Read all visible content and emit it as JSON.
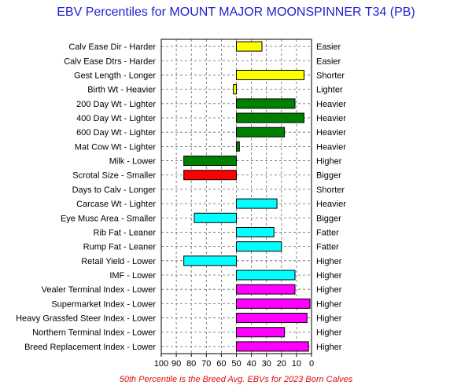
{
  "chart_data": {
    "type": "bar",
    "orientation": "horizontal",
    "title": "EBV Percentiles for MOUNT MAJOR MOONSPINNER T34 (PB)",
    "footnote": "50th Percentile is the Breed Avg. EBVs for 2023 Born Calves",
    "xlim": [
      100,
      0
    ],
    "x_reversed": true,
    "baseline": 50,
    "xticks": [
      100,
      90,
      80,
      70,
      60,
      50,
      40,
      30,
      20,
      10,
      0
    ],
    "grid": true,
    "traits": [
      {
        "left": "Calv Ease Dir - Harder",
        "right": "Easier",
        "value": 33,
        "color": "#ffff00"
      },
      {
        "left": "Calv Ease Dtrs - Harder",
        "right": "Easier",
        "value": null,
        "color": "#ffff00"
      },
      {
        "left": "Gest Length - Longer",
        "right": "Shorter",
        "value": 5,
        "color": "#ffff00"
      },
      {
        "left": "Birth Wt - Heavier",
        "right": "Lighter",
        "value": 52,
        "color": "#ffff00"
      },
      {
        "left": "200 Day Wt - Lighter",
        "right": "Heavier",
        "value": 11,
        "color": "#008000"
      },
      {
        "left": "400 Day Wt - Lighter",
        "right": "Heavier",
        "value": 5,
        "color": "#008000"
      },
      {
        "left": "600 Day Wt - Lighter",
        "right": "Heavier",
        "value": 18,
        "color": "#008000"
      },
      {
        "left": "Mat Cow Wt - Lighter",
        "right": "Heavier",
        "value": 48,
        "color": "#008000"
      },
      {
        "left": "Milk - Lower",
        "right": "Higher",
        "value": 85,
        "color": "#008000"
      },
      {
        "left": "Scrotal Size - Smaller",
        "right": "Bigger",
        "value": 85,
        "color": "#ff0000"
      },
      {
        "left": "Days to Calv - Longer",
        "right": "Shorter",
        "value": null,
        "color": "#ff0000"
      },
      {
        "left": "Carcase Wt - Lighter",
        "right": "Heavier",
        "value": 23,
        "color": "#00ffff"
      },
      {
        "left": "Eye Musc Area - Smaller",
        "right": "Bigger",
        "value": 78,
        "color": "#00ffff"
      },
      {
        "left": "Rib Fat - Leaner",
        "right": "Fatter",
        "value": 25,
        "color": "#00ffff"
      },
      {
        "left": "Rump Fat - Leaner",
        "right": "Fatter",
        "value": 20,
        "color": "#00ffff"
      },
      {
        "left": "Retail Yield - Lower",
        "right": "Higher",
        "value": 85,
        "color": "#00ffff"
      },
      {
        "left": "IMF - Lower",
        "right": "Higher",
        "value": 11,
        "color": "#00ffff"
      },
      {
        "left": "Vealer Terminal Index - Lower",
        "right": "Higher",
        "value": 11,
        "color": "#ff00ff"
      },
      {
        "left": "Supermarket Index - Lower",
        "right": "Higher",
        "value": 1,
        "color": "#ff00ff"
      },
      {
        "left": "Heavy Grassfed Steer Index - Lower",
        "right": "Higher",
        "value": 3,
        "color": "#ff00ff"
      },
      {
        "left": "Northern Terminal Index - Lower",
        "right": "Higher",
        "value": 18,
        "color": "#ff00ff"
      },
      {
        "left": "Breed Replacement Index - Lower",
        "right": "Higher",
        "value": 2,
        "color": "#ff00ff"
      }
    ]
  }
}
